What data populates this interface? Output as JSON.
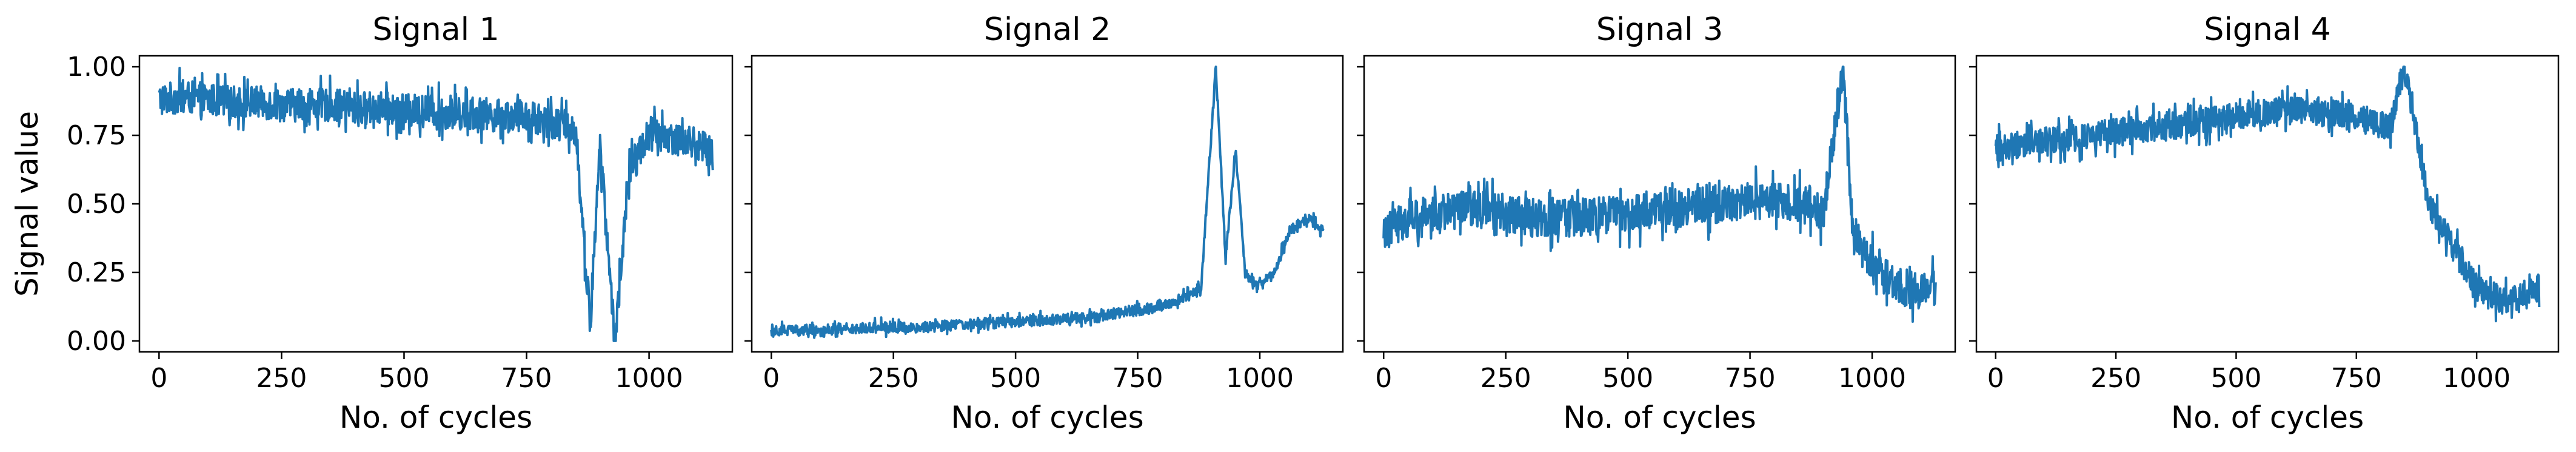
{
  "chart_data": [
    {
      "type": "line",
      "title": "Signal 1",
      "xlabel": "No. of cycles",
      "ylabel": "Signal value",
      "xlim": [
        -40,
        1170
      ],
      "ylim": [
        -0.04,
        1.04
      ],
      "xticks": [
        0,
        250,
        500,
        750,
        1000
      ],
      "yticks": [
        0.0,
        0.25,
        0.5,
        0.75,
        1.0
      ],
      "ytick_labels": [
        "0.00",
        "0.25",
        "0.50",
        "0.75",
        "1.00"
      ],
      "series": [
        {
          "color": "#1f77b4",
          "x": [
            0,
            50,
            100,
            150,
            200,
            250,
            300,
            350,
            400,
            450,
            500,
            550,
            600,
            650,
            700,
            750,
            800,
            850,
            880,
            900,
            930,
            960,
            1000,
            1050,
            1100,
            1130
          ],
          "y": [
            0.88,
            0.89,
            0.88,
            0.87,
            0.87,
            0.86,
            0.86,
            0.86,
            0.85,
            0.85,
            0.84,
            0.84,
            0.83,
            0.83,
            0.82,
            0.82,
            0.8,
            0.77,
            0.06,
            0.72,
            0.0,
            0.62,
            0.76,
            0.74,
            0.72,
            0.68
          ],
          "noise": 0.06
        }
      ]
    },
    {
      "type": "line",
      "title": "Signal 2",
      "xlabel": "No. of cycles",
      "ylabel": "",
      "xlim": [
        -40,
        1170
      ],
      "ylim": [
        -0.04,
        1.04
      ],
      "xticks": [
        0,
        250,
        500,
        750,
        1000
      ],
      "yticks": [
        0.0,
        0.25,
        0.5,
        0.75,
        1.0
      ],
      "ytick_labels": [],
      "series": [
        {
          "color": "#1f77b4",
          "x": [
            0,
            100,
            200,
            300,
            400,
            500,
            600,
            700,
            780,
            850,
            880,
            910,
            930,
            950,
            970,
            1000,
            1030,
            1060,
            1100,
            1130
          ],
          "y": [
            0.04,
            0.04,
            0.05,
            0.05,
            0.06,
            0.07,
            0.08,
            0.1,
            0.12,
            0.16,
            0.2,
            1.0,
            0.3,
            0.7,
            0.25,
            0.2,
            0.25,
            0.4,
            0.45,
            0.4
          ],
          "noise": 0.02
        }
      ]
    },
    {
      "type": "line",
      "title": "Signal 3",
      "xlabel": "No. of cycles",
      "ylabel": "",
      "xlim": [
        -40,
        1170
      ],
      "ylim": [
        -0.04,
        1.04
      ],
      "xticks": [
        0,
        250,
        500,
        750,
        1000
      ],
      "yticks": [
        0.0,
        0.25,
        0.5,
        0.75,
        1.0
      ],
      "ytick_labels": [],
      "series": [
        {
          "color": "#1f77b4",
          "x": [
            0,
            50,
            100,
            200,
            300,
            400,
            500,
            600,
            700,
            800,
            870,
            900,
            940,
            960,
            1000,
            1050,
            1100,
            1130
          ],
          "y": [
            0.4,
            0.45,
            0.47,
            0.48,
            0.45,
            0.45,
            0.46,
            0.48,
            0.5,
            0.52,
            0.5,
            0.45,
            1.0,
            0.4,
            0.28,
            0.2,
            0.18,
            0.2
          ],
          "noise": 0.07
        }
      ]
    },
    {
      "type": "line",
      "title": "Signal 4",
      "xlabel": "No. of cycles",
      "ylabel": "",
      "xlim": [
        -40,
        1170
      ],
      "ylim": [
        -0.04,
        1.04
      ],
      "xticks": [
        0,
        250,
        500,
        750,
        1000
      ],
      "yticks": [
        0.0,
        0.25,
        0.5,
        0.75,
        1.0
      ],
      "ytick_labels": [],
      "series": [
        {
          "color": "#1f77b4",
          "x": [
            0,
            100,
            200,
            300,
            400,
            500,
            600,
            700,
            780,
            820,
            850,
            880,
            900,
            950,
            1000,
            1050,
            1100,
            1130
          ],
          "y": [
            0.7,
            0.73,
            0.75,
            0.77,
            0.79,
            0.82,
            0.84,
            0.83,
            0.8,
            0.78,
            1.0,
            0.7,
            0.5,
            0.35,
            0.2,
            0.15,
            0.16,
            0.2
          ],
          "noise": 0.05
        }
      ]
    }
  ]
}
